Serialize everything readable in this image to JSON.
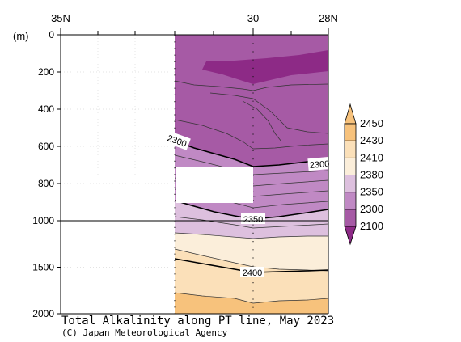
{
  "chart_data": {
    "type": "contour",
    "title": "Total Alkalinity along PT line, May 2023",
    "credit": "(C) Japan Meteorological Agency",
    "y_unit_label": "(m)",
    "y_ticks": [
      0,
      200,
      400,
      600,
      800,
      1000,
      1500,
      2000
    ],
    "x_ticks": [
      "35N",
      "30",
      "28N"
    ],
    "x_range_deg_north": [
      35,
      28
    ],
    "y_range_m": [
      0,
      2000
    ],
    "y_axis_break_m": 1000,
    "colorbar": {
      "levels": [
        2100,
        2300,
        2350,
        2380,
        2410,
        2430,
        2450
      ],
      "colors": [
        "#8d2a86",
        "#a65aa5",
        "#c089c4",
        "#ddc0de",
        "#fbeeda",
        "#fbe0b9",
        "#f7c27c"
      ],
      "extend": "both"
    },
    "contour_labels": [
      {
        "text": "2300"
      },
      {
        "text": "2300"
      },
      {
        "text": "2350"
      },
      {
        "text": "2400"
      }
    ],
    "no_data_region": "west of about 32.4N"
  }
}
